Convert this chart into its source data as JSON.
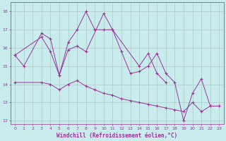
{
  "xlabel": "Windchill (Refroidissement éolien,°C)",
  "xlim": [
    -0.5,
    23.5
  ],
  "ylim": [
    11.8,
    18.5
  ],
  "yticks": [
    12,
    13,
    14,
    15,
    16,
    17,
    18
  ],
  "xticks": [
    0,
    1,
    2,
    3,
    4,
    5,
    6,
    7,
    8,
    9,
    10,
    11,
    12,
    13,
    14,
    15,
    16,
    17,
    18,
    19,
    20,
    21,
    22,
    23
  ],
  "background_color": "#c8ecec",
  "grid_color": "#b0c8c8",
  "line_color": "#993399",
  "lines": [
    {
      "x": [
        0,
        1,
        3,
        4,
        5,
        6,
        7,
        8,
        10,
        11,
        12,
        13,
        14,
        15,
        16,
        17,
        18,
        19,
        20,
        21,
        22,
        23
      ],
      "y": [
        15.6,
        15.0,
        16.8,
        16.5,
        14.5,
        15.9,
        16.1,
        15.8,
        17.9,
        17.0,
        15.8,
        14.6,
        14.7,
        15.0,
        15.7,
        14.6,
        14.1,
        12.0,
        13.5,
        14.3,
        12.8,
        12.8
      ]
    },
    {
      "x": [
        0,
        3,
        4,
        5,
        6,
        7,
        8,
        9,
        10,
        11,
        14,
        15,
        16,
        17
      ],
      "y": [
        15.6,
        16.6,
        15.8,
        14.5,
        16.3,
        17.0,
        18.0,
        17.0,
        17.0,
        17.0,
        15.0,
        15.7,
        14.6,
        14.1
      ]
    },
    {
      "x": [
        0,
        3,
        4,
        5,
        6,
        7,
        8,
        9,
        10,
        11,
        12,
        13,
        14,
        15,
        16,
        17,
        18,
        19,
        20,
        21,
        22,
        23
      ],
      "y": [
        14.1,
        14.1,
        14.0,
        13.7,
        14.0,
        14.2,
        13.9,
        13.7,
        13.5,
        13.4,
        13.2,
        13.1,
        13.0,
        12.9,
        12.8,
        12.7,
        12.6,
        12.5,
        13.0,
        12.5,
        12.8,
        12.8
      ]
    }
  ]
}
